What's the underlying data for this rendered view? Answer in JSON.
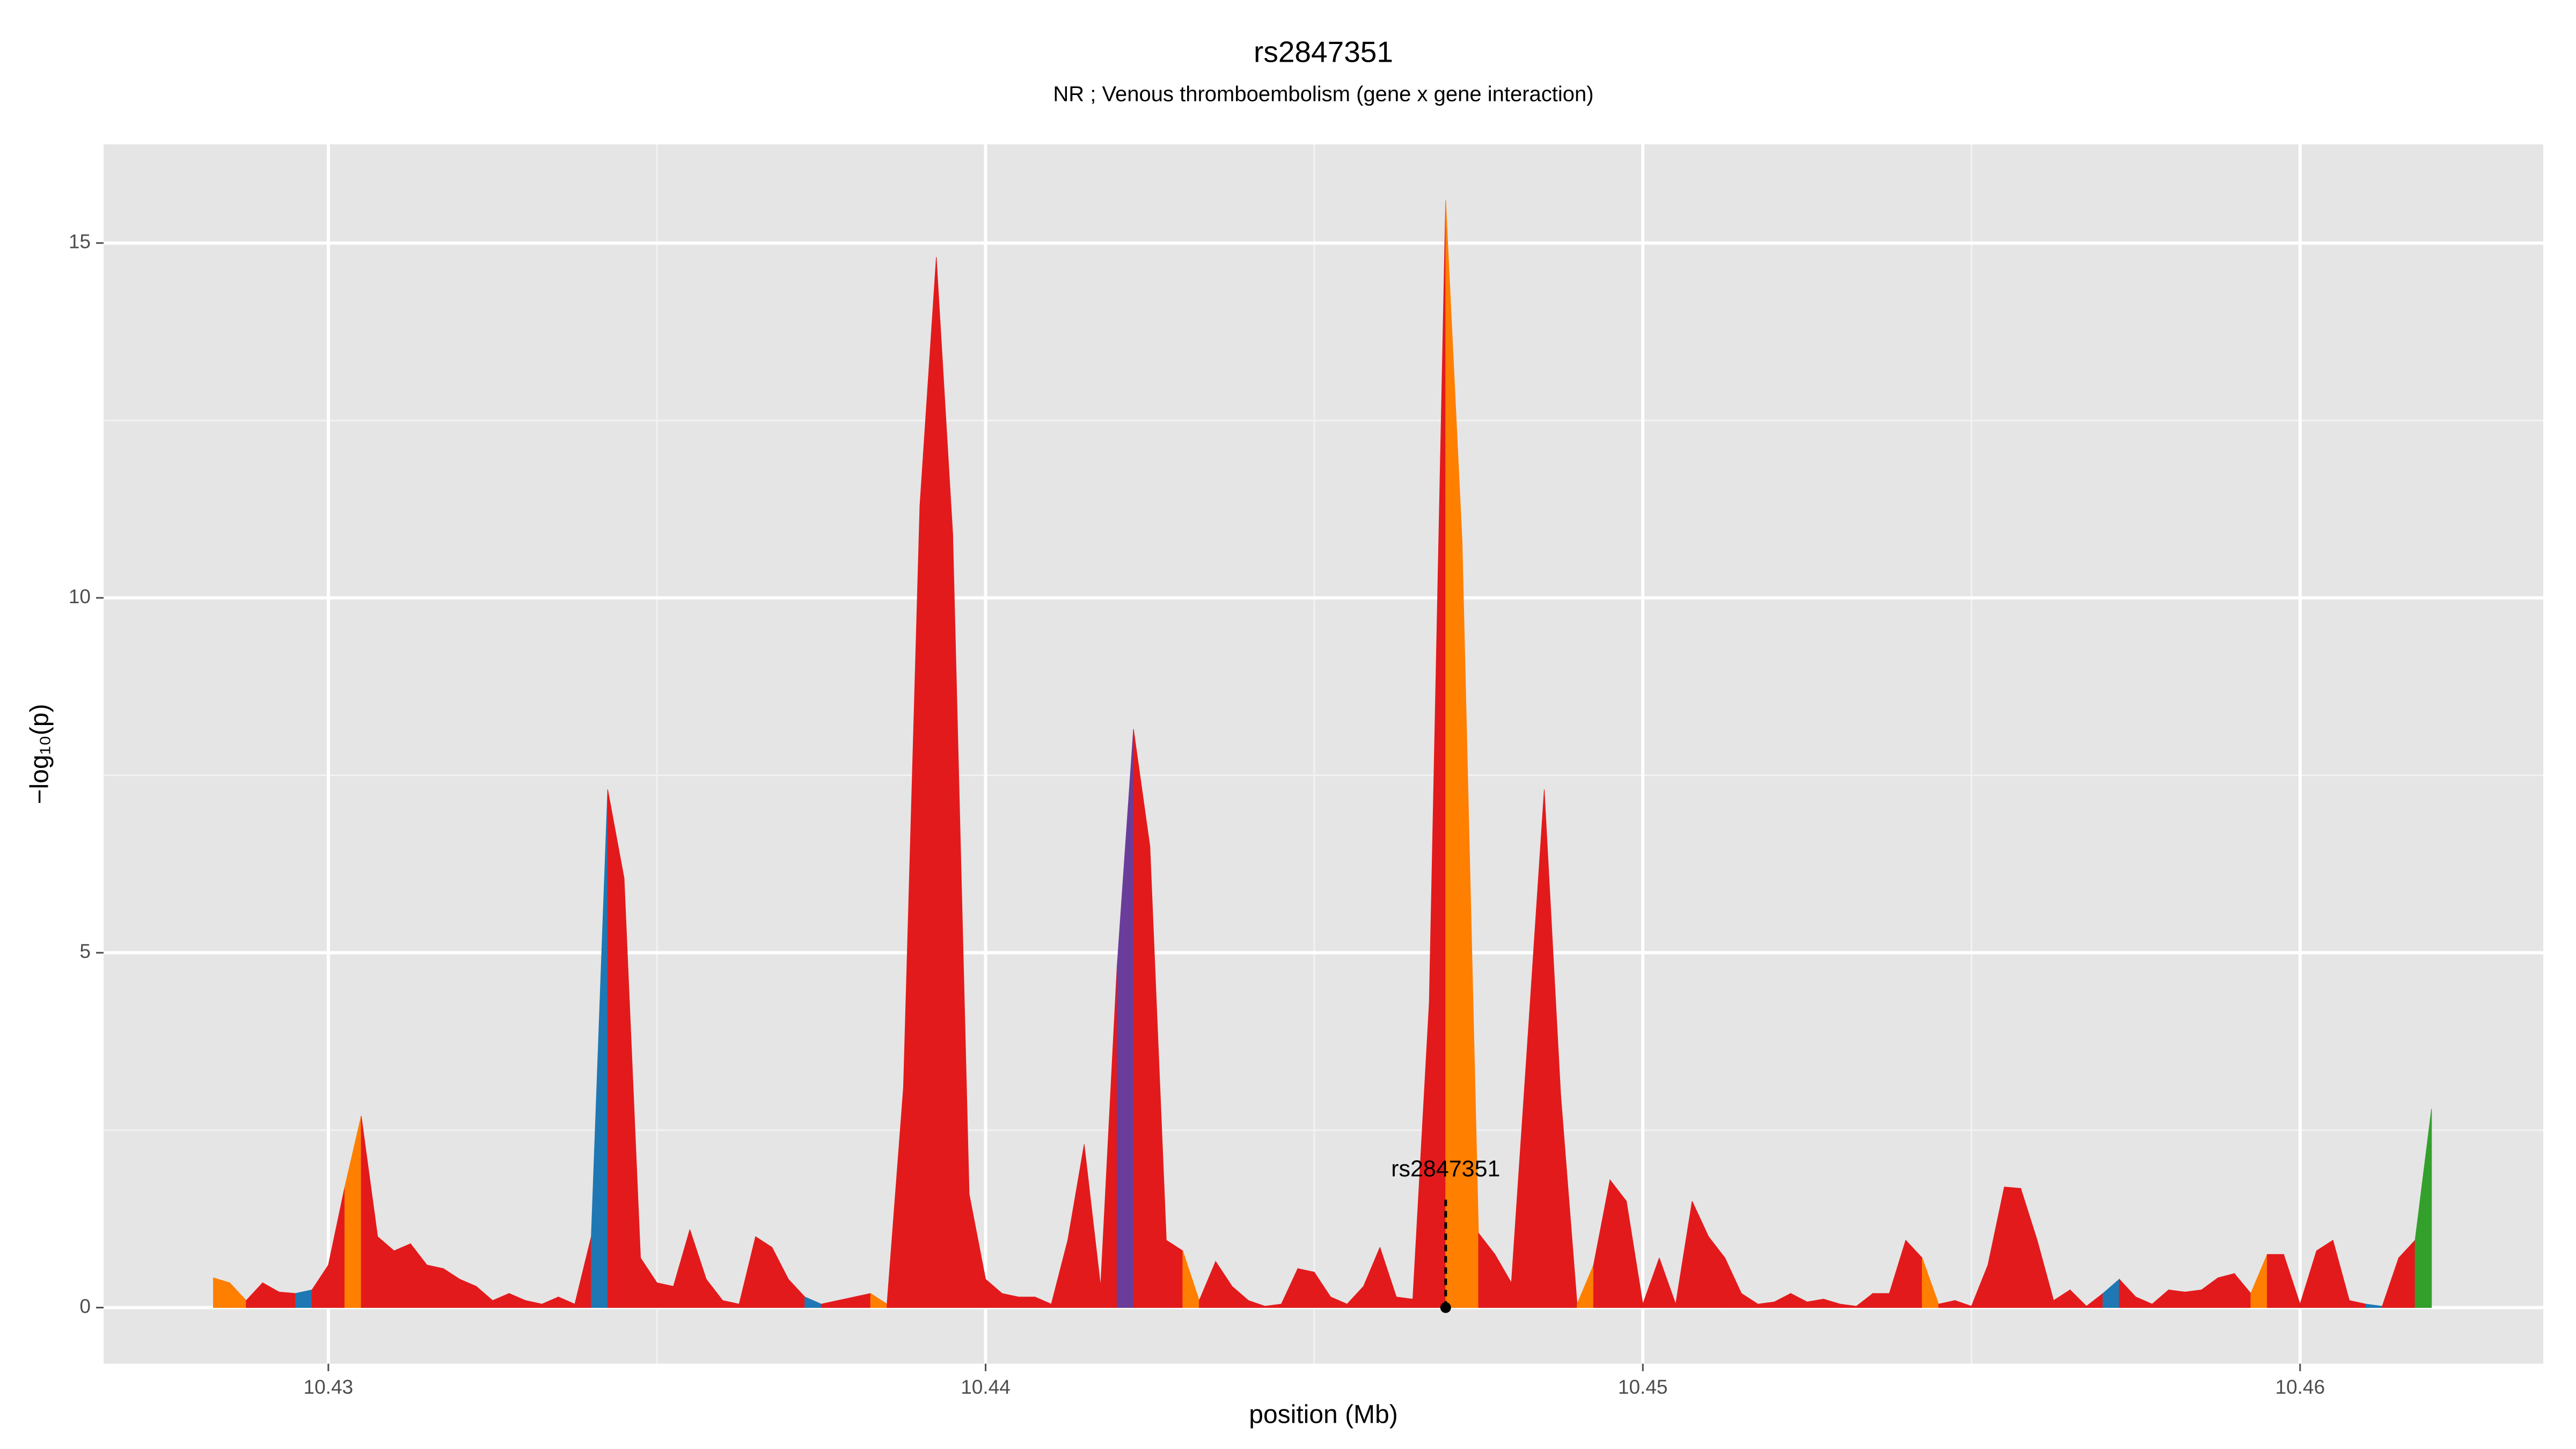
{
  "chart_data": {
    "type": "area",
    "title": "rs2847351",
    "subtitle": "NR ; Venous thromboembolism (gene x gene interaction)",
    "xlabel": "position (Mb)",
    "ylabel": "−log₁₀(p)",
    "xlim": [
      10.42658,
      10.4637
    ],
    "ylim": [
      -0.79,
      16.39
    ],
    "xticks": [
      10.43,
      10.44,
      10.45,
      10.46
    ],
    "yticks": [
      0,
      5,
      10,
      15
    ],
    "grid": true,
    "x": [
      10.42825,
      10.4285,
      10.42875,
      10.429,
      10.42925,
      10.4295,
      10.42975,
      10.43,
      10.43025,
      10.4305,
      10.43075,
      10.431,
      10.43125,
      10.4315,
      10.43175,
      10.432,
      10.43225,
      10.4325,
      10.43275,
      10.433,
      10.43325,
      10.4335,
      10.43375,
      10.434,
      10.43425,
      10.4345,
      10.43475,
      10.435,
      10.43525,
      10.4355,
      10.43575,
      10.436,
      10.43625,
      10.4365,
      10.43675,
      10.437,
      10.43725,
      10.4375,
      10.43775,
      10.438,
      10.43825,
      10.4385,
      10.43875,
      10.439,
      10.43925,
      10.4395,
      10.43975,
      10.44,
      10.44025,
      10.4405,
      10.44075,
      10.441,
      10.44125,
      10.4415,
      10.44175,
      10.442,
      10.44225,
      10.4425,
      10.44275,
      10.443,
      10.44325,
      10.4435,
      10.44375,
      10.444,
      10.44425,
      10.4445,
      10.44475,
      10.445,
      10.44525,
      10.4455,
      10.44575,
      10.446,
      10.44625,
      10.4465,
      10.44675,
      10.447,
      10.44725,
      10.4475,
      10.44775,
      10.448,
      10.44825,
      10.4485,
      10.44875,
      10.449,
      10.44925,
      10.4495,
      10.44975,
      10.45,
      10.45025,
      10.4505,
      10.45075,
      10.451,
      10.45125,
      10.4515,
      10.45175,
      10.452,
      10.45225,
      10.4525,
      10.45275,
      10.453,
      10.45325,
      10.4535,
      10.45375,
      10.454,
      10.45425,
      10.4545,
      10.45475,
      10.455,
      10.45525,
      10.4555,
      10.45575,
      10.456,
      10.45625,
      10.4565,
      10.45675,
      10.457,
      10.45725,
      10.4575,
      10.45775,
      10.458,
      10.45825,
      10.4585,
      10.45875,
      10.459,
      10.45925,
      10.4595,
      10.45975,
      10.46,
      10.46025,
      10.4605,
      10.46075,
      10.461,
      10.46125,
      10.4615,
      10.46175,
      10.462
    ],
    "values": [
      0.42,
      0.35,
      0.1,
      0.35,
      0.22,
      0.2,
      0.25,
      0.6,
      1.7,
      2.7,
      1.0,
      0.8,
      0.9,
      0.6,
      0.55,
      0.4,
      0.3,
      0.1,
      0.2,
      0.1,
      0.05,
      0.15,
      0.05,
      1.0,
      7.3,
      6.05,
      0.7,
      0.35,
      0.3,
      1.1,
      0.4,
      0.1,
      0.05,
      1.0,
      0.85,
      0.4,
      0.15,
      0.05,
      0.1,
      0.15,
      0.2,
      0.05,
      3.1,
      11.3,
      14.8,
      10.9,
      1.6,
      0.4,
      0.2,
      0.15,
      0.15,
      0.05,
      0.95,
      2.3,
      0.3,
      4.8,
      8.15,
      6.5,
      0.95,
      0.8,
      0.1,
      0.65,
      0.3,
      0.1,
      0.02,
      0.05,
      0.55,
      0.5,
      0.15,
      0.05,
      0.3,
      0.85,
      0.15,
      0.12,
      4.3,
      15.6,
      10.8,
      1.05,
      0.75,
      0.35,
      3.8,
      7.3,
      3.0,
      0.05,
      0.6,
      1.8,
      1.5,
      0.05,
      0.7,
      0.05,
      1.5,
      1.0,
      0.7,
      0.2,
      0.05,
      0.08,
      0.2,
      0.08,
      0.12,
      0.05,
      0.02,
      0.2,
      0.2,
      0.95,
      0.7,
      0.05,
      0.1,
      0.02,
      0.6,
      1.7,
      1.68,
      0.95,
      0.1,
      0.25,
      0.02,
      0.2,
      0.4,
      0.15,
      0.05,
      0.25,
      0.22,
      0.25,
      0.42,
      0.48,
      0.2,
      0.75,
      0.75,
      0.05,
      0.8,
      0.95,
      0.1,
      0.05,
      0.02,
      0.7,
      0.95,
      2.8
    ],
    "segment_colors": [
      "#ff7f00",
      "#ff7f00",
      "#e31a1c",
      "#e31a1c",
      "#e31a1c",
      "#1f78b4",
      "#e31a1c",
      "#e31a1c",
      "#ff7f00",
      "#e31a1c",
      "#e31a1c",
      "#e31a1c",
      "#e31a1c",
      "#e31a1c",
      "#e31a1c",
      "#e31a1c",
      "#e31a1c",
      "#e31a1c",
      "#e31a1c",
      "#e31a1c",
      "#e31a1c",
      "#e31a1c",
      "#e31a1c",
      "#1f78b4",
      "#e31a1c",
      "#e31a1c",
      "#e31a1c",
      "#e31a1c",
      "#e31a1c",
      "#e31a1c",
      "#e31a1c",
      "#e31a1c",
      "#e31a1c",
      "#e31a1c",
      "#e31a1c",
      "#e31a1c",
      "#1f78b4",
      "#e31a1c",
      "#e31a1c",
      "#e31a1c",
      "#ff7f00",
      "#e31a1c",
      "#e31a1c",
      "#e31a1c",
      "#e31a1c",
      "#e31a1c",
      "#e31a1c",
      "#e31a1c",
      "#e31a1c",
      "#e31a1c",
      "#e31a1c",
      "#e31a1c",
      "#e31a1c",
      "#e31a1c",
      "#e31a1c",
      "#6a3d9a",
      "#e31a1c",
      "#e31a1c",
      "#e31a1c",
      "#ff7f00",
      "#e31a1c",
      "#e31a1c",
      "#e31a1c",
      "#e31a1c",
      "#e31a1c",
      "#e31a1c",
      "#e31a1c",
      "#e31a1c",
      "#e31a1c",
      "#e31a1c",
      "#e31a1c",
      "#e31a1c",
      "#e31a1c",
      "#e31a1c",
      "#e31a1c",
      "#ff7f00",
      "#ff7f00",
      "#e31a1c",
      "#e31a1c",
      "#e31a1c",
      "#e31a1c",
      "#e31a1c",
      "#e31a1c",
      "#ff7f00",
      "#e31a1c",
      "#e31a1c",
      "#e31a1c",
      "#e31a1c",
      "#e31a1c",
      "#e31a1c",
      "#e31a1c",
      "#e31a1c",
      "#e31a1c",
      "#e31a1c",
      "#e31a1c",
      "#e31a1c",
      "#e31a1c",
      "#e31a1c",
      "#e31a1c",
      "#e31a1c",
      "#e31a1c",
      "#e31a1c",
      "#e31a1c",
      "#e31a1c",
      "#ff7f00",
      "#e31a1c",
      "#e31a1c",
      "#e31a1c",
      "#e31a1c",
      "#e31a1c",
      "#e31a1c",
      "#e31a1c",
      "#e31a1c",
      "#e31a1c",
      "#e31a1c",
      "#1f78b4",
      "#e31a1c",
      "#e31a1c",
      "#e31a1c",
      "#e31a1c",
      "#e31a1c",
      "#e31a1c",
      "#e31a1c",
      "#e31a1c",
      "#ff7f00",
      "#e31a1c",
      "#e31a1c",
      "#e31a1c",
      "#e31a1c",
      "#e31a1c",
      "#e31a1c",
      "#1f78b4",
      "#e31a1c",
      "#e31a1c",
      "#33a02c"
    ],
    "annotation": {
      "text": "rs2847351",
      "x": 10.447,
      "y": 0
    }
  }
}
